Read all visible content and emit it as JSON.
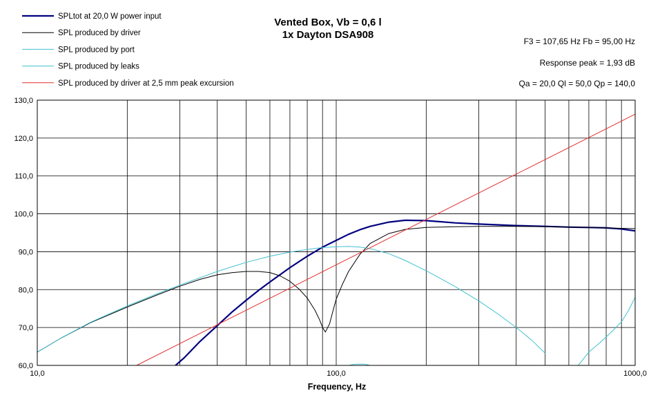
{
  "chart_data": {
    "type": "line",
    "title": "Vented Box, Vb = 0,6 l",
    "subtitle": "1x Dayton DSA908",
    "xlabel": "Frequency, Hz",
    "ylabel": "",
    "x_scale": "log",
    "xlim": [
      10,
      1000
    ],
    "ylim": [
      60,
      130
    ],
    "x_tick_labels": [
      "10,0",
      "100,0",
      "1000,0"
    ],
    "y_ticks": [
      60,
      70,
      80,
      90,
      100,
      110,
      120,
      130
    ],
    "y_tick_labels": [
      "60,0",
      "70,0",
      "80,0",
      "90,0",
      "100,0",
      "110,0",
      "120,0",
      "130,0"
    ],
    "grid": true,
    "legend_position": "top-left",
    "info": [
      "F3 = 107,65 Hz  Fb = 95,00 Hz",
      "Response  peak = 1,93 dB",
      "Qa = 20,0  Ql = 50,0  Qp = 140,0"
    ],
    "series": [
      {
        "name": "SPLtot at 20,0 W power input",
        "color": "#000080",
        "x": [
          29,
          31,
          35,
          40,
          45,
          50,
          55,
          60,
          70,
          80,
          90,
          100,
          110,
          120,
          130,
          150,
          170,
          200,
          250,
          300,
          400,
          500,
          600,
          700,
          800,
          900,
          1000
        ],
        "y": [
          60,
          62,
          66.3,
          70.5,
          74.2,
          77.2,
          79.8,
          82,
          85.8,
          88.8,
          91.2,
          93,
          94.6,
          95.8,
          96.7,
          97.8,
          98.3,
          98.2,
          97.6,
          97.3,
          96.9,
          96.7,
          96.5,
          96.4,
          96.3,
          96,
          95.5
        ]
      },
      {
        "name": "SPL produced by driver",
        "color": "#000000",
        "x": [
          10,
          12,
          15,
          20,
          25,
          30,
          35,
          40,
          45,
          50,
          55,
          60,
          65,
          70,
          75,
          80,
          85,
          88,
          90,
          92,
          95,
          98,
          100,
          105,
          110,
          120,
          130,
          150,
          170,
          200,
          250,
          300,
          400,
          500,
          700,
          1000
        ],
        "y": [
          63.5,
          67.2,
          71.2,
          75.4,
          78.5,
          80.9,
          82.7,
          83.9,
          84.5,
          84.8,
          84.8,
          84.5,
          83.6,
          82.2,
          80.2,
          77.8,
          74.5,
          72,
          70,
          68.8,
          71,
          75,
          77.5,
          81.5,
          84.8,
          89.3,
          92.2,
          94.8,
          95.9,
          96.4,
          96.6,
          96.7,
          96.7,
          96.6,
          96.4,
          96.1
        ]
      },
      {
        "name": "SPL produced by port",
        "color": "#40C0D0",
        "x": [
          10,
          12,
          15,
          20,
          25,
          30,
          40,
          50,
          60,
          70,
          80,
          90,
          100,
          110,
          120,
          130,
          150,
          170,
          200,
          250,
          300,
          350,
          400,
          450,
          500
        ],
        "y": [
          63.5,
          67.2,
          71.3,
          75.7,
          78.8,
          81.2,
          84.8,
          87.2,
          88.8,
          89.9,
          90.6,
          91.1,
          91.3,
          91.4,
          91.2,
          90.8,
          89.5,
          87.7,
          85,
          80.8,
          77,
          73.4,
          70,
          66.7,
          63.2
        ]
      },
      {
        "name": "SPL produced by leaks",
        "color": "#40C0D0",
        "x": [
          645,
          700,
          750,
          800,
          850,
          900,
          950,
          1000
        ],
        "y": [
          60,
          63.5,
          65.5,
          67.5,
          69.5,
          71.5,
          74.5,
          78
        ]
      },
      {
        "name": "",
        "color": "#40C0D0",
        "x": [
          110,
          115,
          120,
          125,
          130
        ],
        "y": [
          60,
          60.3,
          60.35,
          60.3,
          60
        ]
      },
      {
        "name": "SPL produced by driver at 2,5 mm peak excursion",
        "color": "#E03030",
        "x": [
          21.5,
          1000
        ],
        "y": [
          60,
          126.3
        ]
      }
    ]
  }
}
